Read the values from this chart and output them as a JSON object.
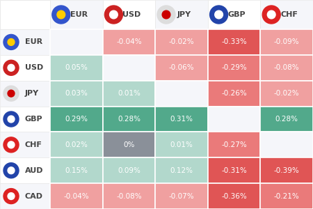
{
  "rows": [
    "EUR",
    "USD",
    "JPY",
    "GBP",
    "CHF",
    "AUD",
    "CAD"
  ],
  "cols": [
    "EUR",
    "USD",
    "JPY",
    "GBP",
    "CHF"
  ],
  "values": [
    [
      null,
      -0.04,
      -0.02,
      -0.33,
      -0.09
    ],
    [
      0.05,
      null,
      -0.06,
      -0.29,
      -0.08
    ],
    [
      0.03,
      0.01,
      null,
      -0.26,
      -0.02
    ],
    [
      0.29,
      0.28,
      0.31,
      null,
      0.28
    ],
    [
      0.02,
      0.0,
      0.01,
      -0.27,
      null
    ],
    [
      0.15,
      0.09,
      0.12,
      -0.31,
      -0.39
    ],
    [
      -0.04,
      -0.08,
      -0.07,
      -0.36,
      -0.21
    ]
  ],
  "background_color": "#ffffff",
  "header_bg": "#f5f6fa",
  "cell_bg": "#f5f6fa",
  "positive_strong": "#52a98b",
  "positive_light": "#b2d8cc",
  "negative_strong": "#e05555",
  "negative_light": "#f0a0a0",
  "negative_medium": "#ea7a7a",
  "zero_color": "#8a9099",
  "text_white": "#ffffff",
  "text_dark": "#888888",
  "row_label_color": "#444444",
  "col_label_color": "#444444",
  "flag_colors": {
    "EUR": "#3355cc",
    "USD": "#cc2222",
    "JPY": "#dddddd",
    "GBP": "#2244aa",
    "CHF": "#dd2222",
    "AUD": "#2244aa",
    "CAD": "#dd2222"
  },
  "flag_inner": {
    "EUR": "#ffcc00",
    "USD": "#ffffff",
    "JPY": "#cc0000",
    "GBP": "#ffffff",
    "CHF": "#ffffff",
    "AUD": "#ffffff",
    "CAD": "#ffffff"
  }
}
